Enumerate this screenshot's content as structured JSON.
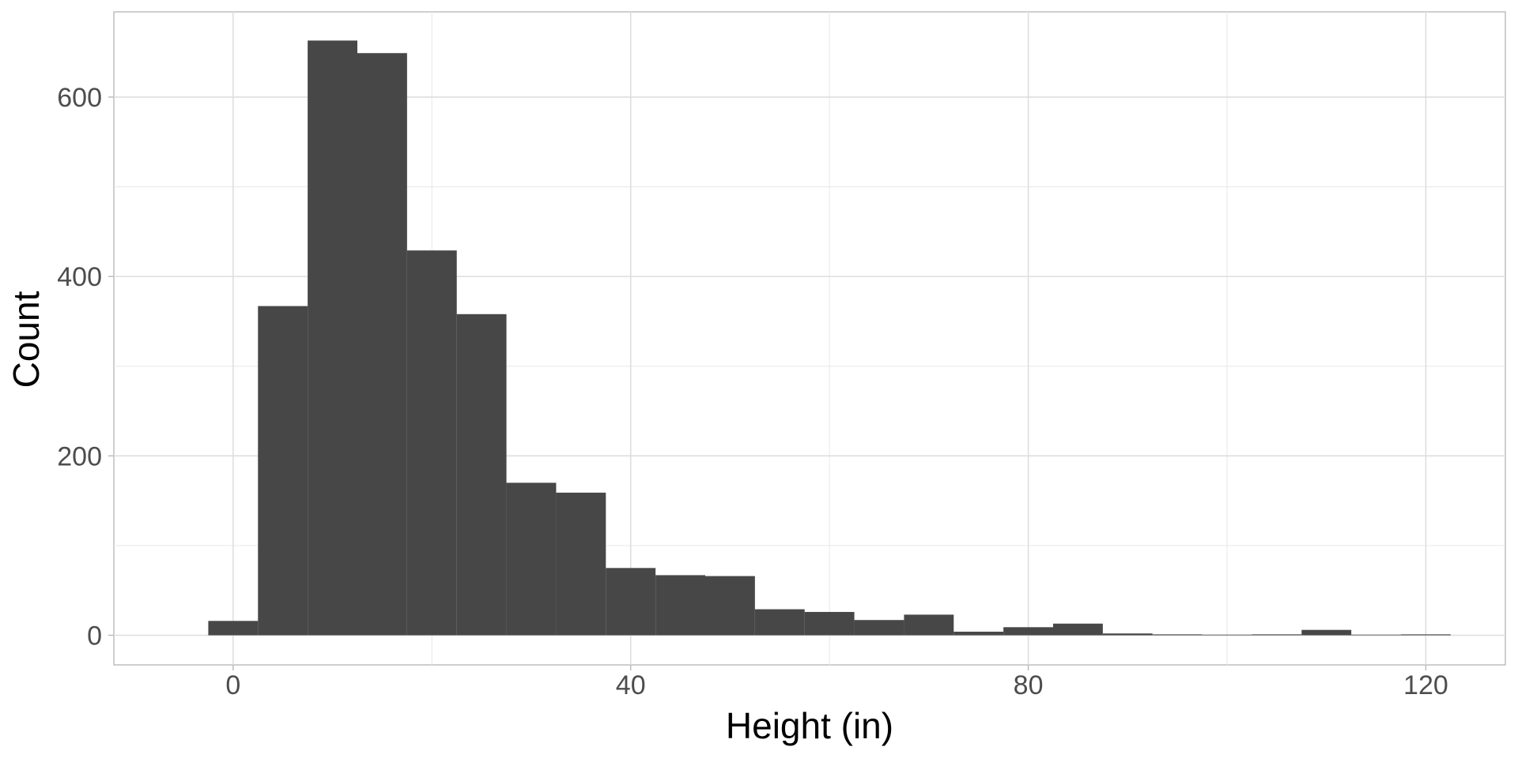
{
  "chart_data": {
    "type": "bar",
    "title": "",
    "xlabel": "Height (in)",
    "ylabel": "Count",
    "bin_width": 5,
    "bin_centers": [
      0,
      5,
      10,
      15,
      20,
      25,
      30,
      35,
      40,
      45,
      50,
      55,
      60,
      65,
      70,
      75,
      80,
      85,
      90,
      95,
      100,
      105,
      110,
      115,
      120
    ],
    "values": [
      16,
      367,
      663,
      649,
      429,
      358,
      170,
      159,
      75,
      67,
      66,
      29,
      26,
      17,
      23,
      4,
      9,
      13,
      2,
      1,
      0,
      1,
      6,
      0,
      1
    ],
    "xlim": [
      -12,
      128
    ],
    "ylim": [
      -33,
      695
    ],
    "xticks": [
      0,
      40,
      80,
      120
    ],
    "xtick_labels": [
      "0",
      "40",
      "80",
      "120"
    ],
    "yticks": [
      0,
      200,
      400,
      600
    ],
    "ytick_labels": [
      "0",
      "200",
      "400",
      "600"
    ],
    "bar_color": "#474747",
    "grid": true
  }
}
